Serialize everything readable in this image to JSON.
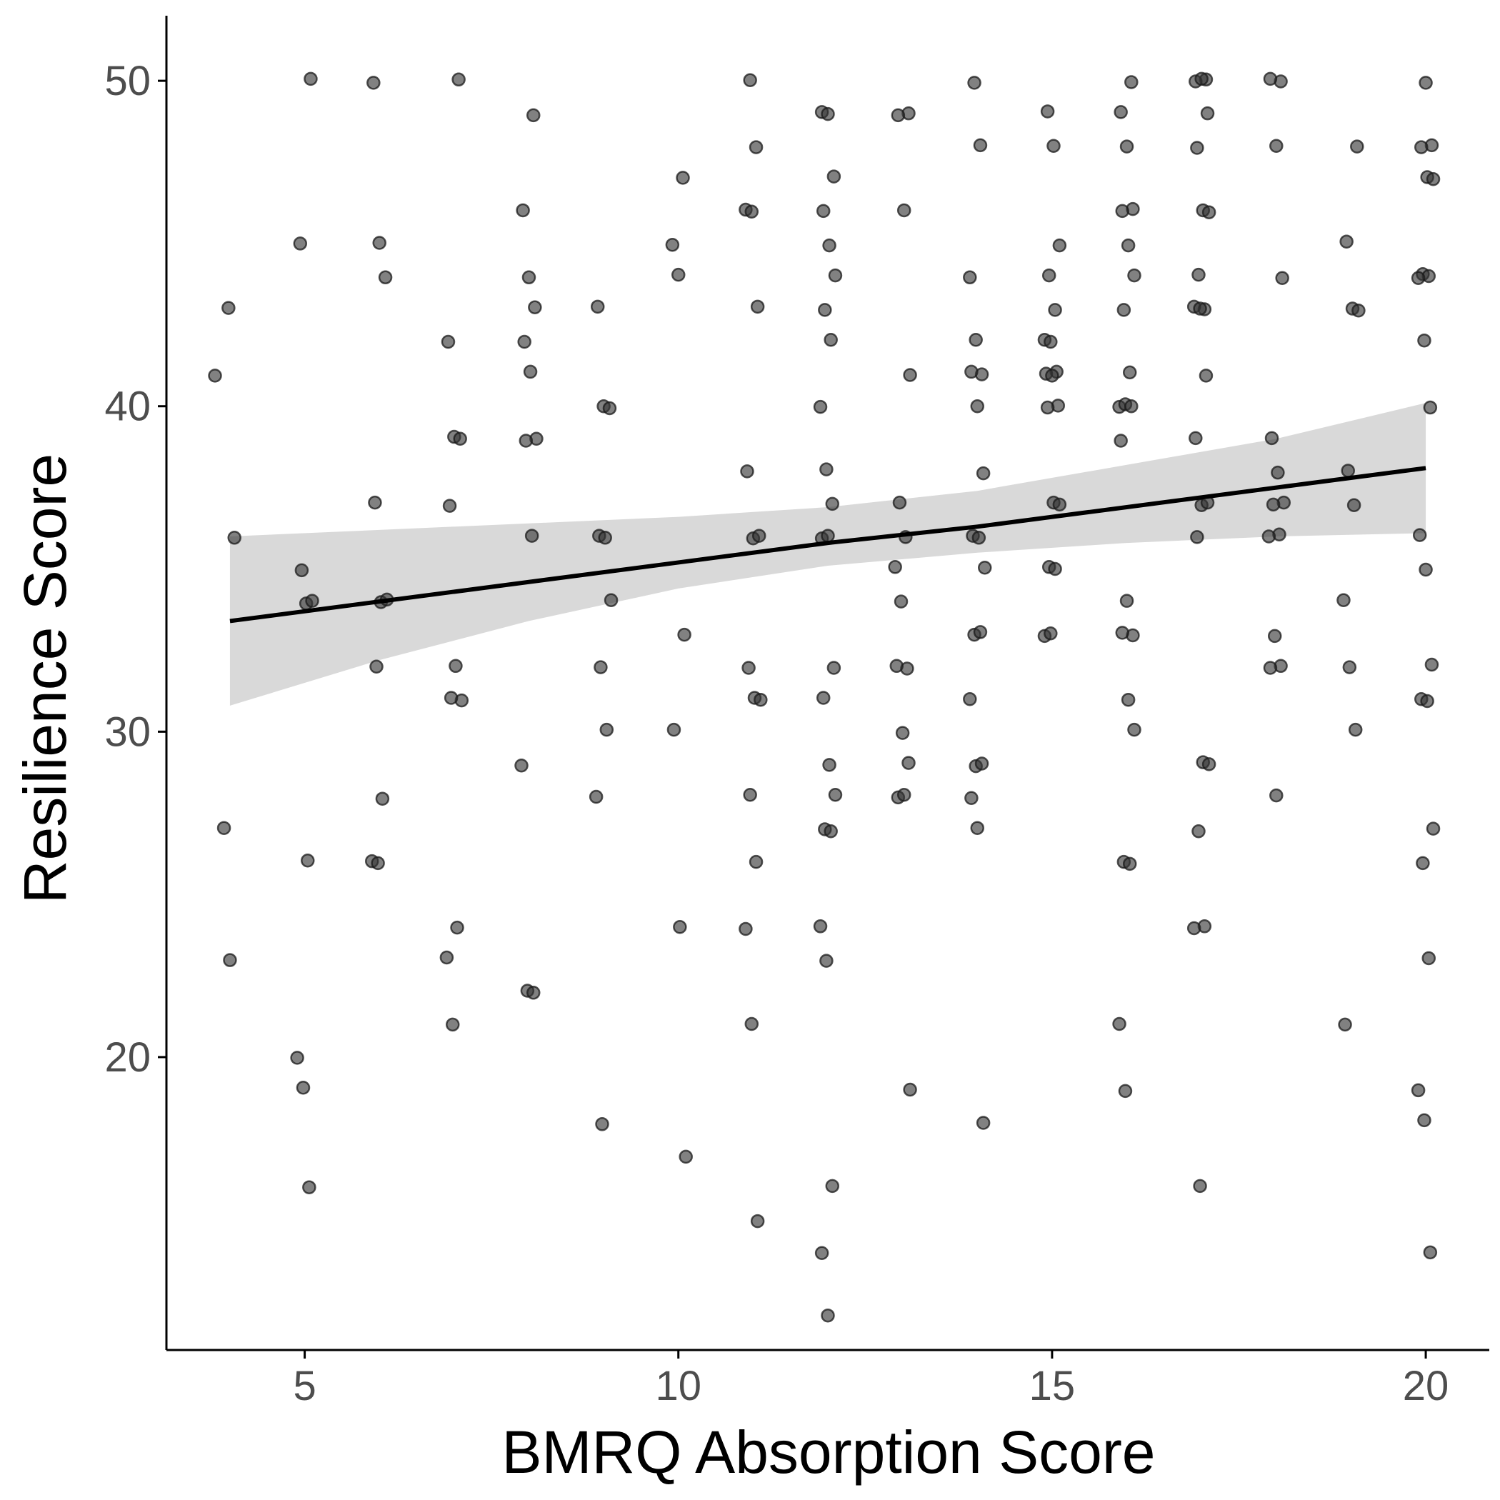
{
  "chart_data": {
    "type": "scatter",
    "title": "",
    "xlabel": "BMRQ Absorption Score",
    "ylabel": "Resilience Score",
    "xlim": [
      3.15,
      20.85
    ],
    "ylim": [
      11,
      52
    ],
    "x_ticks": [
      5,
      10,
      15,
      20
    ],
    "y_ticks": [
      20,
      30,
      40,
      50
    ],
    "grid": false,
    "legend": "none",
    "colors": {
      "point": "#333333",
      "line": "#000000",
      "band": "#d9d9d9",
      "axis": "#000000"
    },
    "regression": {
      "x": [
        4,
        6,
        8,
        10,
        12,
        14,
        16,
        18,
        20
      ],
      "fit": [
        33.4,
        34.0,
        34.6,
        35.2,
        35.8,
        36.3,
        36.9,
        37.5,
        38.1
      ],
      "lower": [
        30.8,
        32.2,
        33.4,
        34.4,
        35.1,
        35.5,
        35.8,
        36.0,
        36.1
      ],
      "upper": [
        36.0,
        36.2,
        36.4,
        36.6,
        36.9,
        37.4,
        38.2,
        39.0,
        40.1
      ]
    },
    "points": [
      [
        3.9,
        41
      ],
      [
        4,
        43
      ],
      [
        4,
        36
      ],
      [
        4,
        27
      ],
      [
        4,
        23
      ],
      [
        5,
        50
      ],
      [
        5,
        45
      ],
      [
        5,
        34
      ],
      [
        5,
        34
      ],
      [
        5,
        35
      ],
      [
        5,
        26
      ],
      [
        5,
        20
      ],
      [
        5,
        19
      ],
      [
        5,
        16
      ],
      [
        6,
        50
      ],
      [
        6,
        45
      ],
      [
        6,
        44
      ],
      [
        6,
        37
      ],
      [
        6,
        34
      ],
      [
        6,
        34
      ],
      [
        6,
        32
      ],
      [
        6,
        28
      ],
      [
        6,
        26
      ],
      [
        6,
        26
      ],
      [
        7,
        50
      ],
      [
        7,
        42
      ],
      [
        7,
        39
      ],
      [
        7,
        39
      ],
      [
        7,
        37
      ],
      [
        7,
        32
      ],
      [
        7,
        31
      ],
      [
        7,
        31
      ],
      [
        7,
        24
      ],
      [
        7,
        23
      ],
      [
        7,
        21
      ],
      [
        8,
        49
      ],
      [
        8,
        46
      ],
      [
        8,
        44
      ],
      [
        8,
        43
      ],
      [
        8,
        42
      ],
      [
        8,
        41
      ],
      [
        8,
        39
      ],
      [
        8,
        39
      ],
      [
        8,
        36
      ],
      [
        8,
        29
      ],
      [
        8,
        22
      ],
      [
        8,
        22
      ],
      [
        9,
        43
      ],
      [
        9,
        40
      ],
      [
        9,
        40
      ],
      [
        9,
        36
      ],
      [
        9,
        36
      ],
      [
        9,
        34
      ],
      [
        9,
        32
      ],
      [
        9,
        30
      ],
      [
        9,
        28
      ],
      [
        9,
        18
      ],
      [
        10,
        47
      ],
      [
        10,
        45
      ],
      [
        10,
        44
      ],
      [
        10,
        33
      ],
      [
        10,
        30
      ],
      [
        10,
        24
      ],
      [
        10,
        17
      ],
      [
        11,
        50
      ],
      [
        11,
        48
      ],
      [
        11,
        46
      ],
      [
        11,
        46
      ],
      [
        11,
        43
      ],
      [
        11,
        38
      ],
      [
        11,
        36
      ],
      [
        11,
        36
      ],
      [
        11,
        32
      ],
      [
        11,
        31
      ],
      [
        11,
        31
      ],
      [
        11,
        28
      ],
      [
        11,
        26
      ],
      [
        11,
        24
      ],
      [
        11,
        21
      ],
      [
        11,
        15
      ],
      [
        12,
        49
      ],
      [
        12,
        49
      ],
      [
        12,
        47
      ],
      [
        12,
        46
      ],
      [
        12,
        45
      ],
      [
        12,
        44
      ],
      [
        12,
        43
      ],
      [
        12,
        42
      ],
      [
        12,
        40
      ],
      [
        12,
        38
      ],
      [
        12,
        37
      ],
      [
        12,
        36
      ],
      [
        12,
        36
      ],
      [
        12,
        32
      ],
      [
        12,
        31
      ],
      [
        12,
        29
      ],
      [
        12,
        28
      ],
      [
        12,
        27
      ],
      [
        12,
        27
      ],
      [
        12,
        24
      ],
      [
        12,
        23
      ],
      [
        12,
        16
      ],
      [
        12,
        14
      ],
      [
        12,
        12
      ],
      [
        13,
        49
      ],
      [
        13,
        49
      ],
      [
        13,
        46
      ],
      [
        13,
        41
      ],
      [
        13,
        37
      ],
      [
        13,
        36
      ],
      [
        13,
        35
      ],
      [
        13,
        34
      ],
      [
        13,
        32
      ],
      [
        13,
        32
      ],
      [
        13,
        30
      ],
      [
        13,
        29
      ],
      [
        13,
        28
      ],
      [
        13,
        28
      ],
      [
        13,
        19
      ],
      [
        14,
        50
      ],
      [
        14,
        48
      ],
      [
        14,
        44
      ],
      [
        14,
        42
      ],
      [
        14,
        41
      ],
      [
        14,
        41
      ],
      [
        14,
        40
      ],
      [
        14,
        38
      ],
      [
        14,
        36
      ],
      [
        14,
        36
      ],
      [
        14,
        35
      ],
      [
        14,
        33
      ],
      [
        14,
        33
      ],
      [
        14,
        31
      ],
      [
        14,
        29
      ],
      [
        14,
        29
      ],
      [
        14,
        28
      ],
      [
        14,
        27
      ],
      [
        14,
        18
      ],
      [
        15,
        49
      ],
      [
        15,
        48
      ],
      [
        15,
        45
      ],
      [
        15,
        44
      ],
      [
        15,
        43
      ],
      [
        15,
        42
      ],
      [
        15,
        42
      ],
      [
        15,
        41
      ],
      [
        15,
        41
      ],
      [
        15,
        41
      ],
      [
        15,
        40
      ],
      [
        15,
        40
      ],
      [
        15,
        37
      ],
      [
        15,
        37
      ],
      [
        15,
        35
      ],
      [
        15,
        35
      ],
      [
        15,
        33
      ],
      [
        15,
        33
      ],
      [
        16,
        50
      ],
      [
        16,
        49
      ],
      [
        16,
        48
      ],
      [
        16,
        46
      ],
      [
        16,
        46
      ],
      [
        16,
        45
      ],
      [
        16,
        44
      ],
      [
        16,
        43
      ],
      [
        16,
        41
      ],
      [
        16,
        40
      ],
      [
        16,
        40
      ],
      [
        16,
        40
      ],
      [
        16,
        39
      ],
      [
        16,
        34
      ],
      [
        16,
        33
      ],
      [
        16,
        33
      ],
      [
        16,
        31
      ],
      [
        16,
        30
      ],
      [
        16,
        26
      ],
      [
        16,
        26
      ],
      [
        16,
        21
      ],
      [
        16,
        19
      ],
      [
        17,
        50
      ],
      [
        17,
        50
      ],
      [
        17,
        50
      ],
      [
        17,
        49
      ],
      [
        17,
        48
      ],
      [
        17,
        46
      ],
      [
        17,
        46
      ],
      [
        17,
        44
      ],
      [
        17,
        43
      ],
      [
        17,
        43
      ],
      [
        17,
        43
      ],
      [
        17,
        41
      ],
      [
        17,
        39
      ],
      [
        17,
        37
      ],
      [
        17,
        37
      ],
      [
        17,
        36
      ],
      [
        17,
        29
      ],
      [
        17,
        29
      ],
      [
        17,
        27
      ],
      [
        17,
        24
      ],
      [
        17,
        24
      ],
      [
        17,
        16
      ],
      [
        18,
        50
      ],
      [
        18,
        50
      ],
      [
        18,
        48
      ],
      [
        18,
        44
      ],
      [
        18,
        39
      ],
      [
        18,
        38
      ],
      [
        18,
        37
      ],
      [
        18,
        37
      ],
      [
        18,
        36
      ],
      [
        18,
        36
      ],
      [
        18,
        33
      ],
      [
        18,
        32
      ],
      [
        18,
        32
      ],
      [
        18,
        28
      ],
      [
        19,
        48
      ],
      [
        19,
        45
      ],
      [
        19,
        43
      ],
      [
        19,
        43
      ],
      [
        19,
        38
      ],
      [
        19,
        37
      ],
      [
        19,
        34
      ],
      [
        19,
        32
      ],
      [
        19,
        30
      ],
      [
        19,
        21
      ],
      [
        20,
        50
      ],
      [
        20,
        48
      ],
      [
        20,
        48
      ],
      [
        20,
        47
      ],
      [
        20,
        47
      ],
      [
        20,
        44
      ],
      [
        20,
        44
      ],
      [
        20,
        44
      ],
      [
        20,
        42
      ],
      [
        20,
        40
      ],
      [
        20,
        36
      ],
      [
        20,
        35
      ],
      [
        20,
        32
      ],
      [
        20,
        31
      ],
      [
        20,
        31
      ],
      [
        20,
        27
      ],
      [
        20,
        26
      ],
      [
        20,
        23
      ],
      [
        20,
        19
      ],
      [
        20,
        18
      ],
      [
        20,
        14
      ]
    ]
  }
}
